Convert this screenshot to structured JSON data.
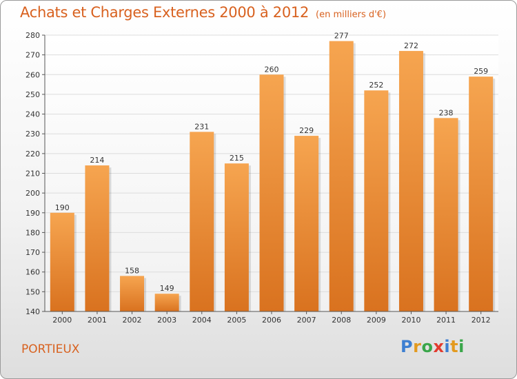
{
  "chart_data": {
    "type": "bar",
    "title": "Achats et Charges Externes 2000 à 2012",
    "subtitle": "(en milliers d'€)",
    "categories": [
      "2000",
      "2001",
      "2002",
      "2003",
      "2004",
      "2005",
      "2006",
      "2007",
      "2008",
      "2009",
      "2010",
      "2011",
      "2012"
    ],
    "values": [
      190,
      214,
      158,
      149,
      231,
      215,
      260,
      229,
      277,
      252,
      272,
      238,
      259
    ],
    "ylim": [
      140,
      280
    ],
    "yticks": [
      140,
      150,
      160,
      170,
      180,
      190,
      200,
      210,
      220,
      230,
      240,
      250,
      260,
      270,
      280
    ],
    "grid": true,
    "bar_color_top": "#f6a550",
    "bar_color_bottom": "#d9721f"
  },
  "footer": {
    "commune": "PORTIEUX",
    "logo_letters": [
      "P",
      "r",
      "o",
      "x",
      "i",
      "t",
      "i"
    ],
    "logo_colors": [
      "#3d7fd1",
      "#e39a1f",
      "#3aa64a",
      "#e23b2e",
      "#3d7fd1",
      "#e39a1f",
      "#3aa64a"
    ]
  },
  "colors": {
    "accent": "#d8611f",
    "grid": "#dcdcdc"
  }
}
